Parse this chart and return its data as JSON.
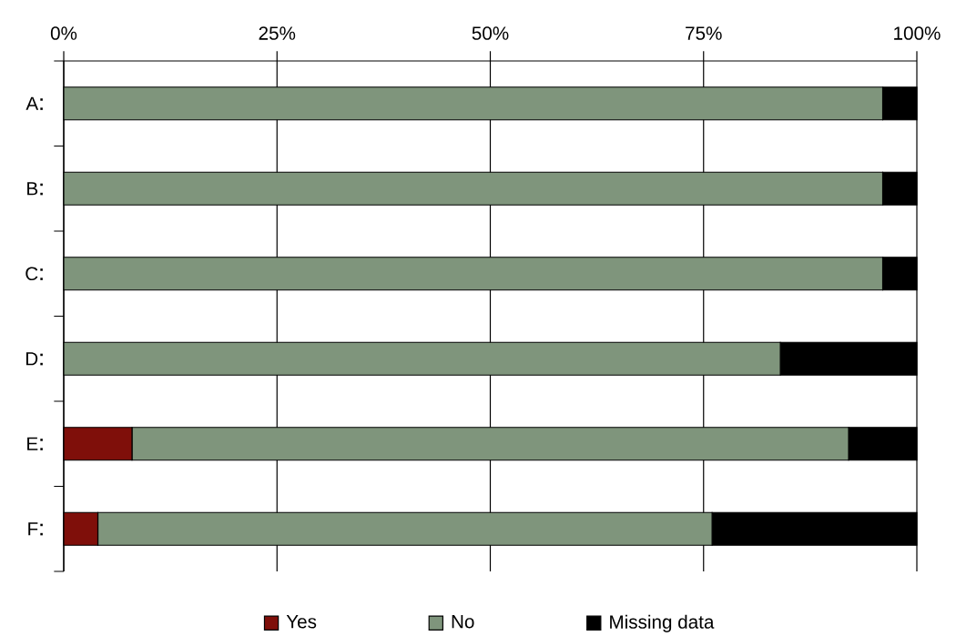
{
  "chart_data": {
    "type": "bar",
    "orientation": "horizontal",
    "stacked": true,
    "categories": [
      "A",
      "B",
      "C",
      "D",
      "E",
      "F"
    ],
    "series": [
      {
        "name": "Yes",
        "color": "#7f0f0a",
        "values": [
          0,
          0,
          0,
          0,
          8,
          4
        ]
      },
      {
        "name": "No",
        "color": "#7f957c",
        "values": [
          96,
          96,
          96,
          84,
          84,
          72
        ]
      },
      {
        "name": "Missing data",
        "color": "#000000",
        "values": [
          4,
          4,
          4,
          16,
          8,
          24
        ]
      }
    ],
    "xlim": [
      0,
      100
    ],
    "xticks": [
      {
        "value": 0,
        "label": "0%"
      },
      {
        "value": 25,
        "label": "25%"
      },
      {
        "value": 50,
        "label": "50%"
      },
      {
        "value": 75,
        "label": "75%"
      },
      {
        "value": 100,
        "label": "100%"
      }
    ],
    "grid": "x",
    "legend": "bottom"
  }
}
